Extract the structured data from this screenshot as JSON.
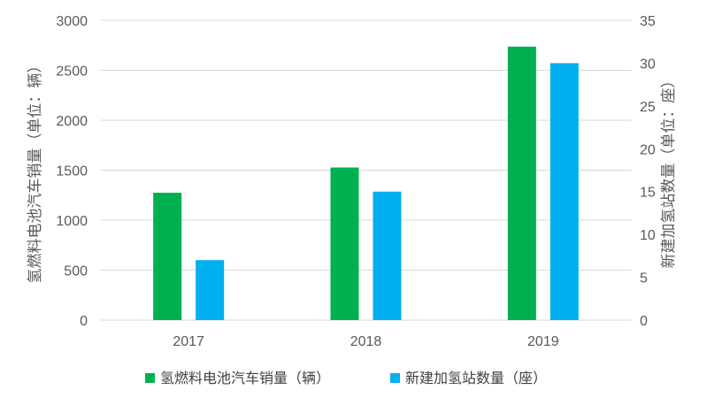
{
  "chart_data": {
    "type": "bar",
    "categories": [
      "2017",
      "2018",
      "2019"
    ],
    "series": [
      {
        "name": "氢燃料电池汽车销量（辆）",
        "values": [
          1275,
          1527,
          2737
        ],
        "axis": "left",
        "color": "#00b050"
      },
      {
        "name": "新建加氢站数量（座）",
        "values": [
          7,
          15,
          30
        ],
        "axis": "right",
        "color": "#00b0f0"
      }
    ],
    "ylabel": "氢燃料电池汽车销量（单位：辆）",
    "y2label": "新建加氢站数量（单位：座）",
    "ylim": [
      0,
      3000
    ],
    "y2lim": [
      0,
      35
    ],
    "yticks": [
      "0",
      "500",
      "1000",
      "1500",
      "2000",
      "2500",
      "3000"
    ],
    "y2ticks": [
      "0",
      "5",
      "10",
      "15",
      "20",
      "25",
      "30",
      "35"
    ],
    "grid": true,
    "legend": "bottom"
  }
}
